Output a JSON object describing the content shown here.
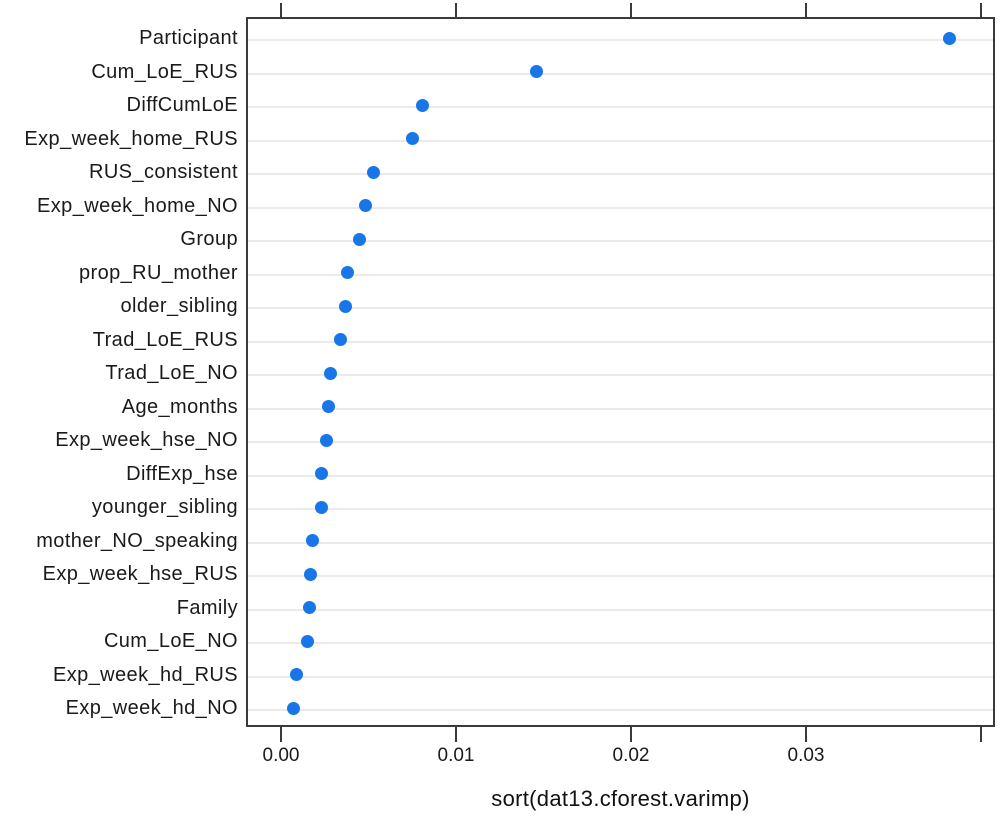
{
  "chart_data": {
    "type": "scatter",
    "subtype": "cleveland-dotplot",
    "title": "",
    "xlabel": "sort(dat13.cforest.varimp)",
    "ylabel": "",
    "xlim": [
      -0.002,
      0.0408
    ],
    "grid": "horizontal-rows",
    "legend": "none",
    "xticks": [
      {
        "value": 0.0,
        "label": "0.00"
      },
      {
        "value": 0.01,
        "label": "0.01"
      },
      {
        "value": 0.02,
        "label": "0.02"
      },
      {
        "value": 0.03,
        "label": "0.03"
      },
      {
        "value": 0.04,
        "label": ""
      }
    ],
    "points": [
      {
        "label": "Participant",
        "value": 0.0382
      },
      {
        "label": "Cum_LoE_RUS",
        "value": 0.0146
      },
      {
        "label": "DiffCumLoE",
        "value": 0.0081
      },
      {
        "label": "Exp_week_home_RUS",
        "value": 0.0075
      },
      {
        "label": "RUS_consistent",
        "value": 0.0053
      },
      {
        "label": "Exp_week_home_NO",
        "value": 0.0048
      },
      {
        "label": "Group",
        "value": 0.0045
      },
      {
        "label": "prop_RU_mother",
        "value": 0.0038
      },
      {
        "label": "older_sibling",
        "value": 0.0037
      },
      {
        "label": "Trad_LoE_RUS",
        "value": 0.0034
      },
      {
        "label": "Trad_LoE_NO",
        "value": 0.0028
      },
      {
        "label": "Age_months",
        "value": 0.0027
      },
      {
        "label": "Exp_week_hse_NO",
        "value": 0.0026
      },
      {
        "label": "DiffExp_hse",
        "value": 0.0023
      },
      {
        "label": "younger_sibling",
        "value": 0.0023
      },
      {
        "label": "mother_NO_speaking",
        "value": 0.0018
      },
      {
        "label": "Exp_week_hse_RUS",
        "value": 0.0017
      },
      {
        "label": "Family",
        "value": 0.0016
      },
      {
        "label": "Cum_LoE_NO",
        "value": 0.0015
      },
      {
        "label": "Exp_week_hd_RUS",
        "value": 0.0009
      },
      {
        "label": "Exp_week_hd_NO",
        "value": 0.0007
      }
    ],
    "colors": {
      "point": "#1876E8",
      "grid": "#ebebeb",
      "border": "#3a3a3a",
      "tick": "#3a3a3a",
      "text": "#1a1a1a",
      "background": "#ffffff"
    }
  }
}
